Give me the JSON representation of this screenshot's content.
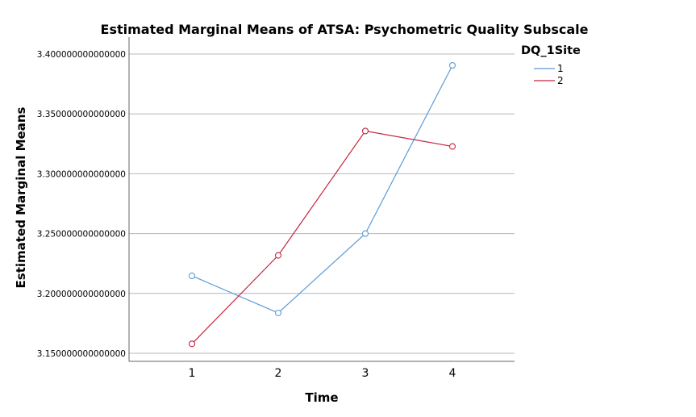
{
  "chart_data": {
    "type": "line",
    "title": "Estimated Marginal Means of ATSA: Psychometric Quality Subscale",
    "xlabel": "Time",
    "ylabel": "Estimated Marginal Means",
    "categories": [
      "1",
      "2",
      "3",
      "4"
    ],
    "ylim": [
      3.15,
      3.4
    ],
    "yticks": [
      {
        "value": 3.15,
        "label": "3.150000000000000"
      },
      {
        "value": 3.2,
        "label": "3.200000000000000"
      },
      {
        "value": 3.25,
        "label": "3.250000000000000"
      },
      {
        "value": 3.3,
        "label": "3.300000000000000"
      },
      {
        "value": 3.35,
        "label": "3.350000000000000"
      },
      {
        "value": 3.4,
        "label": "3.400000000000000"
      }
    ],
    "grid": "horizontal",
    "legend": {
      "title": "DQ_1Site",
      "placement": "top-right"
    },
    "series": [
      {
        "name": "1",
        "color": "#5b9bd9",
        "values": [
          3.2147,
          3.1837,
          3.25,
          3.3905
        ]
      },
      {
        "name": "2",
        "color": "#c8243f",
        "values": [
          3.1579,
          3.2318,
          3.3357,
          3.3228
        ]
      }
    ]
  }
}
